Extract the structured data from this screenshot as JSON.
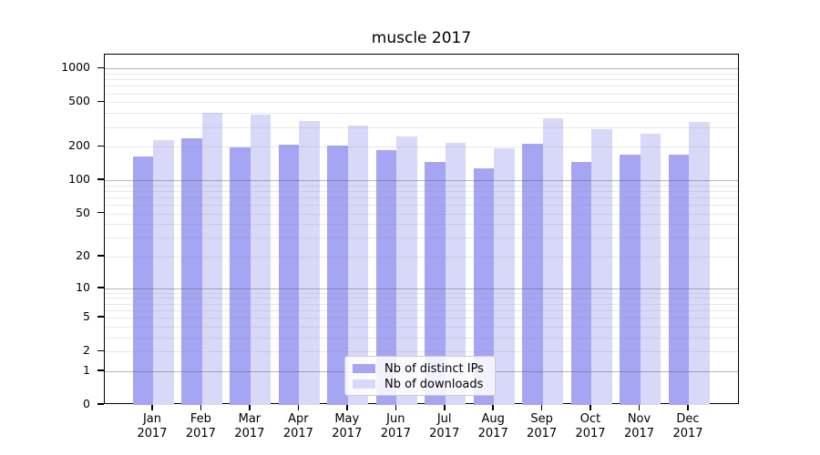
{
  "title": "muscle 2017",
  "colors": {
    "ips_bar": "#a5a5f3",
    "downloads_bar": "#d8d8f8",
    "grid_major": "rgba(96,96,96,0.45)",
    "grid_minor": "rgba(150,150,150,0.22)",
    "axis": "#000000",
    "legend_border": "#cccccc"
  },
  "y_axis": {
    "tick_labels": [
      "1000",
      "500",
      "200",
      "100",
      "50",
      "20",
      "10",
      "5",
      "2",
      "1",
      "0"
    ]
  },
  "x_axis": {
    "ticks": [
      {
        "month": "Jan",
        "year": "2017"
      },
      {
        "month": "Feb",
        "year": "2017"
      },
      {
        "month": "Mar",
        "year": "2017"
      },
      {
        "month": "Apr",
        "year": "2017"
      },
      {
        "month": "May",
        "year": "2017"
      },
      {
        "month": "Jun",
        "year": "2017"
      },
      {
        "month": "Jul",
        "year": "2017"
      },
      {
        "month": "Aug",
        "year": "2017"
      },
      {
        "month": "Sep",
        "year": "2017"
      },
      {
        "month": "Oct",
        "year": "2017"
      },
      {
        "month": "Nov",
        "year": "2017"
      },
      {
        "month": "Dec",
        "year": "2017"
      }
    ]
  },
  "chart_data": {
    "type": "bar",
    "title": "muscle 2017",
    "categories": [
      "Jan 2017",
      "Feb 2017",
      "Mar 2017",
      "Apr 2017",
      "May 2017",
      "Jun 2017",
      "Jul 2017",
      "Aug 2017",
      "Sep 2017",
      "Oct 2017",
      "Nov 2017",
      "Dec 2017"
    ],
    "series": [
      {
        "name": "Nb of distinct IPs",
        "values": [
          163,
          238,
          197,
          209,
          206,
          188,
          145,
          128,
          213,
          145,
          169,
          169
        ]
      },
      {
        "name": "Nb of downloads",
        "values": [
          229,
          405,
          390,
          343,
          310,
          246,
          216,
          193,
          358,
          286,
          260,
          335
        ]
      }
    ],
    "xlabel": "",
    "ylabel": "",
    "yscale": "log(1+v)",
    "yticks": [
      0,
      1,
      2,
      5,
      10,
      20,
      50,
      100,
      200,
      500,
      1000
    ],
    "ylim": [
      0,
      1350
    ],
    "grid": "major at powers of 10, minor log subdivisions",
    "legend_position": "lower center"
  }
}
